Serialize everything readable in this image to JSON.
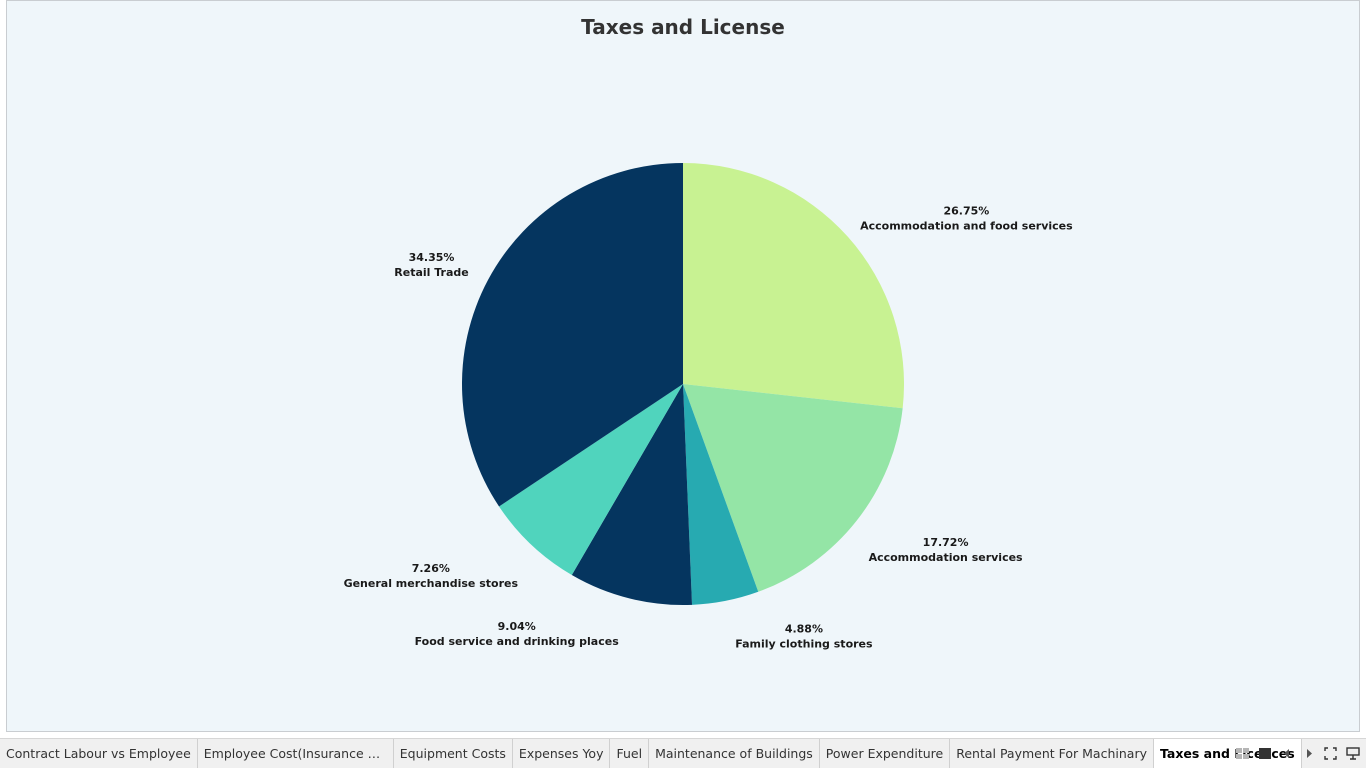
{
  "title": "Taxes and License",
  "chart_data": {
    "type": "pie",
    "title": "Taxes and License",
    "slices": [
      {
        "label": "Accommodation and food services",
        "value": 26.75,
        "value_label": "26.75%",
        "color": "#c8f292"
      },
      {
        "label": "Accommodation services",
        "value": 17.72,
        "value_label": "17.72%",
        "color": "#94e5a6"
      },
      {
        "label": "Family clothing stores",
        "value": 4.88,
        "value_label": "4.88%",
        "color": "#27aab1"
      },
      {
        "label": "Food service and drinking places",
        "value": 9.04,
        "value_label": "9.04%",
        "color": "#05355f"
      },
      {
        "label": "General merchandise stores",
        "value": 7.26,
        "value_label": "7.26%",
        "color": "#50d4bd"
      },
      {
        "label": "Retail Trade",
        "value": 34.35,
        "value_label": "34.35%",
        "color": "#05355f"
      }
    ]
  },
  "tabs": [
    {
      "label": "Contract Labour vs Employee",
      "active": false
    },
    {
      "label": "Employee Cost(Insurance vs Pe...",
      "active": false
    },
    {
      "label": "Equipment Costs",
      "active": false
    },
    {
      "label": "Expenses Yoy",
      "active": false
    },
    {
      "label": "Fuel",
      "active": false
    },
    {
      "label": "Maintenance of Buildings",
      "active": false
    },
    {
      "label": "Power Expenditure",
      "active": false
    },
    {
      "label": "Rental Payment For Machinary",
      "active": false
    },
    {
      "label": "Taxes and Licences",
      "active": true
    }
  ],
  "controls": [
    {
      "icon": "grid-view-icon"
    },
    {
      "icon": "filmstrip-view-icon"
    },
    {
      "icon": "previous-sheet-icon"
    },
    {
      "icon": "next-sheet-icon"
    },
    {
      "icon": "fullscreen-icon"
    },
    {
      "icon": "presentation-mode-icon"
    }
  ]
}
